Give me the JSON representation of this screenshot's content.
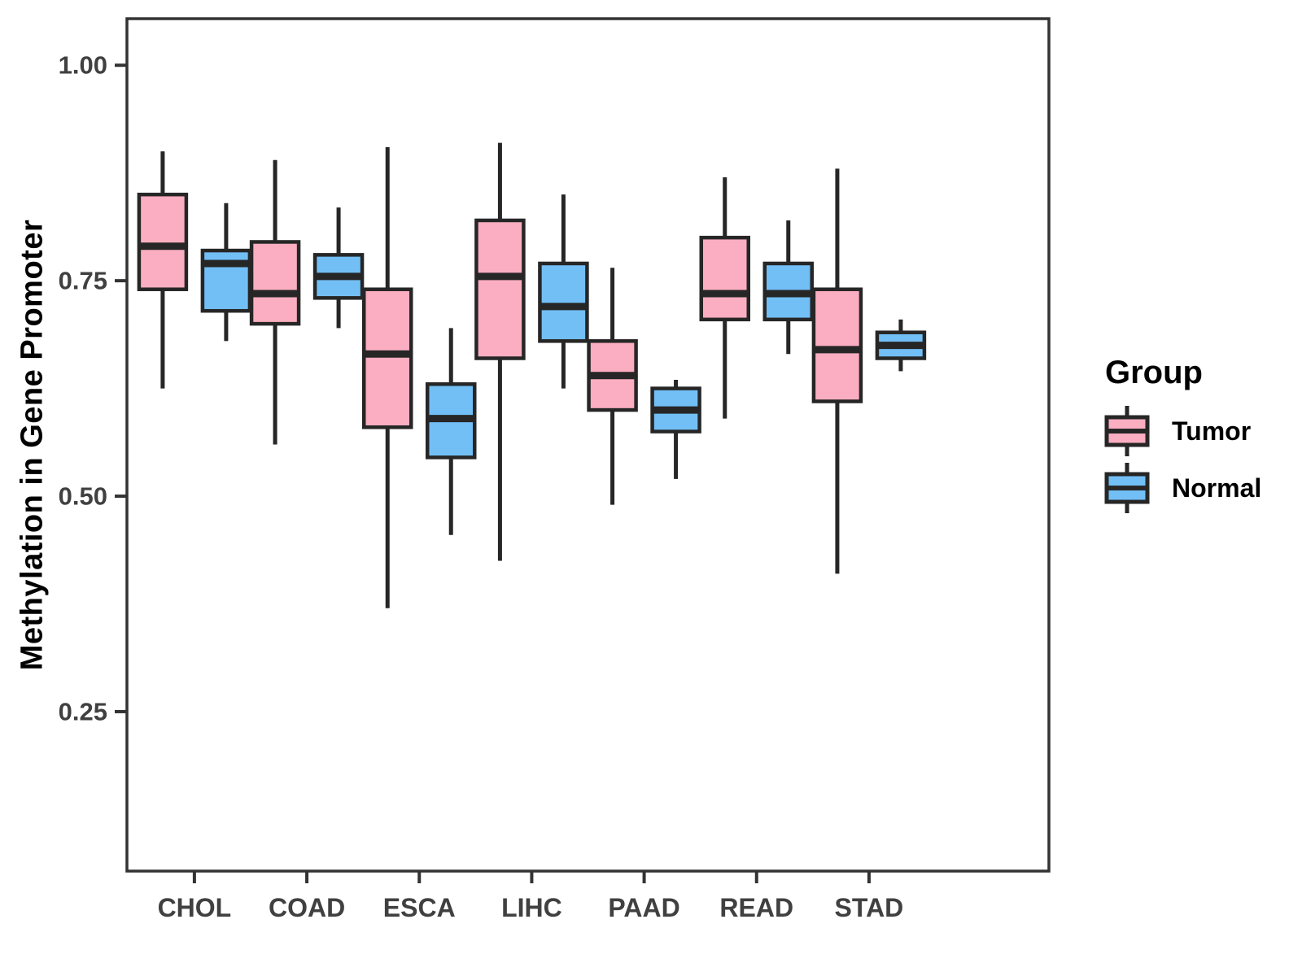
{
  "chart_data": {
    "type": "boxplot",
    "title": "",
    "xlabel": "",
    "ylabel": "Methylation in Gene Promoter",
    "categories": [
      "CHOL",
      "COAD",
      "ESCA",
      "LIHC",
      "PAAD",
      "READ",
      "STAD"
    ],
    "ylim": [
      0.065,
      1.054
    ],
    "yticks": [
      0.25,
      0.5,
      0.75,
      1.0
    ],
    "ytick_labels": [
      "0.25",
      "0.50",
      "0.75",
      "1.00"
    ],
    "grid": false,
    "legend": {
      "title": "Group",
      "position": "right"
    },
    "box_stats_order": [
      "whisker_low",
      "q1",
      "median",
      "q3",
      "whisker_high"
    ],
    "series": [
      {
        "name": "Tumor",
        "color": "#FBAEC1",
        "boxes": [
          [
            0.625,
            0.74,
            0.79,
            0.85,
            0.9
          ],
          [
            0.56,
            0.7,
            0.735,
            0.795,
            0.89
          ],
          [
            0.37,
            0.58,
            0.665,
            0.74,
            0.905
          ],
          [
            0.425,
            0.66,
            0.755,
            0.82,
            0.91
          ],
          [
            0.49,
            0.6,
            0.64,
            0.68,
            0.765
          ],
          [
            0.59,
            0.705,
            0.735,
            0.8,
            0.87
          ],
          [
            0.41,
            0.61,
            0.67,
            0.74,
            0.88
          ]
        ]
      },
      {
        "name": "Normal",
        "color": "#72BFF6",
        "boxes": [
          [
            0.68,
            0.715,
            0.77,
            0.785,
            0.84
          ],
          [
            0.695,
            0.73,
            0.755,
            0.78,
            0.835
          ],
          [
            0.455,
            0.545,
            0.59,
            0.63,
            0.695
          ],
          [
            0.625,
            0.68,
            0.72,
            0.77,
            0.85
          ],
          [
            0.52,
            0.575,
            0.6,
            0.625,
            0.635
          ],
          [
            0.665,
            0.705,
            0.735,
            0.77,
            0.82
          ],
          [
            0.645,
            0.66,
            0.675,
            0.69,
            0.705
          ]
        ]
      }
    ],
    "style": {
      "panel_border_color": "#333333",
      "box_stroke_color": "#262626",
      "tick_color": "#333333",
      "tick_label_color": "#404040",
      "background": "#FFFFFF"
    }
  }
}
